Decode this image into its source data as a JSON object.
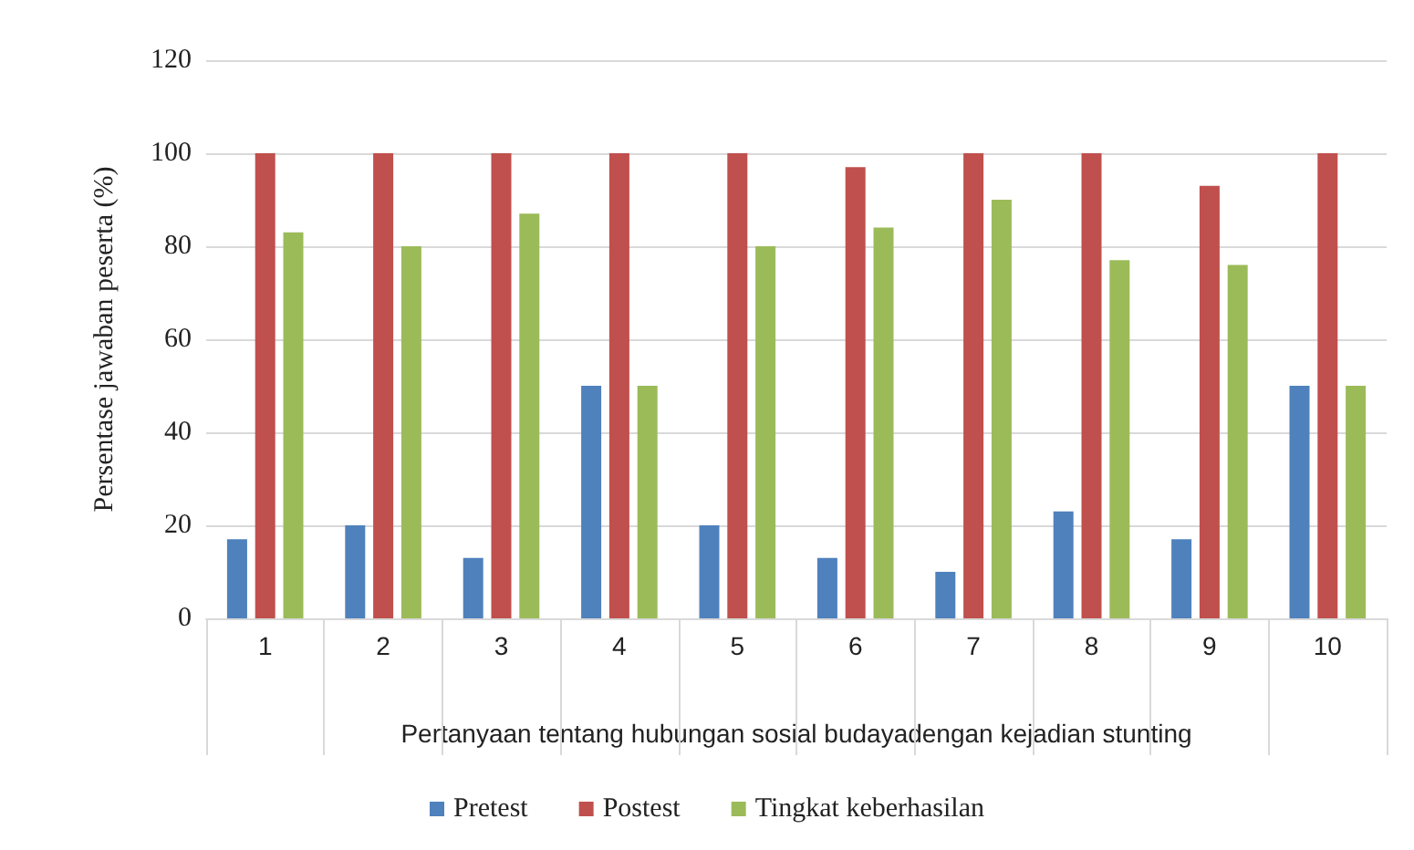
{
  "chart_data": {
    "type": "bar",
    "xlabel": "Pertanyaan tentang hubungan sosial budayadengan kejadian stunting",
    "ylabel": "Persentase jawaban peserta (%)",
    "categories": [
      "1",
      "2",
      "3",
      "4",
      "5",
      "6",
      "7",
      "8",
      "9",
      "10"
    ],
    "series": [
      {
        "name": "Pretest",
        "color": "#4f81bd",
        "values": [
          17,
          20,
          13,
          50,
          20,
          13,
          10,
          23,
          17,
          50
        ]
      },
      {
        "name": "Postest",
        "color": "#c0504d",
        "values": [
          100,
          100,
          100,
          100,
          100,
          97,
          100,
          100,
          93,
          100
        ]
      },
      {
        "name": "Tingkat keberhasilan",
        "color": "#9bbb59",
        "values": [
          83,
          80,
          87,
          50,
          80,
          84,
          90,
          77,
          76,
          50
        ]
      }
    ],
    "ylim": [
      0,
      120
    ],
    "yticks": [
      0,
      20,
      40,
      60,
      80,
      100,
      120
    ],
    "grid": "y",
    "legend": "bottom"
  }
}
